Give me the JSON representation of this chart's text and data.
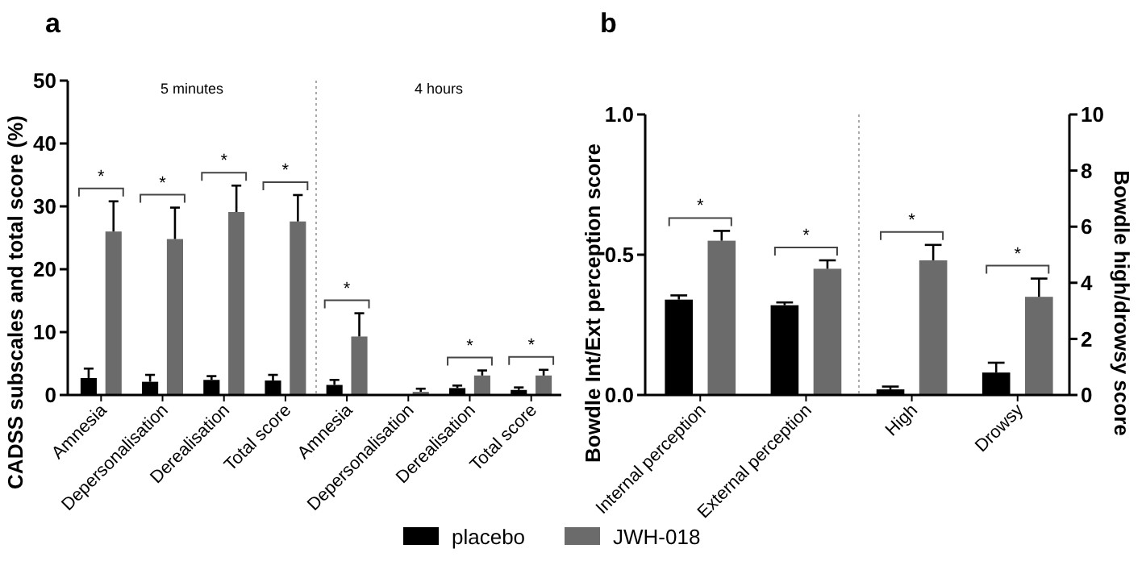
{
  "chart_data": [
    {
      "type": "bar",
      "title": "a",
      "ylabel": "CADSS subscales and total score (%)",
      "categories": [
        "Amnesia",
        "Depersonalisation",
        "Derealisation",
        "Total score",
        "Amnesia",
        "Depersonalisation",
        "Derealisation",
        "Total score"
      ],
      "series": [
        {
          "name": "placebo",
          "color": "#000000",
          "values": [
            2.7,
            2.1,
            2.4,
            2.3,
            1.6,
            0,
            1.1,
            0.8
          ],
          "errors": [
            [
              2.7,
              4.2
            ],
            [
              2.1,
              3.2
            ],
            [
              2.4,
              3.0
            ],
            [
              2.3,
              3.2
            ],
            [
              1.6,
              2.4
            ],
            null,
            [
              1.1,
              1.5
            ],
            [
              0.8,
              1.2
            ]
          ]
        },
        {
          "name": "JWH-018",
          "color": "#6b6b6b",
          "values": [
            26,
            24.8,
            29.1,
            27.6,
            9.3,
            0.5,
            3.1,
            3.1
          ],
          "errors": [
            [
              26,
              30.8
            ],
            [
              24.8,
              29.8
            ],
            [
              29.1,
              33.3
            ],
            [
              27.6,
              31.8
            ],
            [
              9.3,
              13.0
            ],
            [
              0.5,
              1.0
            ],
            [
              3.1,
              3.9
            ],
            [
              3.1,
              4.0
            ]
          ]
        }
      ],
      "ylim": [
        0,
        50
      ],
      "yticks": [
        0,
        10,
        20,
        30,
        40,
        50
      ],
      "grid": false,
      "legend": "bottom",
      "annotations": [
        "5 minutes",
        "4 hours",
        "*",
        "*",
        "*",
        "*",
        "*",
        "*",
        "*"
      ]
    },
    {
      "type": "bar",
      "title": "b",
      "ylabel": "Bowdle Int/Ext perception score",
      "y2label": "Bowdle high/drowsy score",
      "categories": [
        "Internal perception",
        "External perception",
        "High",
        "Drowsy"
      ],
      "series": [
        {
          "color": "#000000",
          "values": [
            0.34,
            0.32,
            null,
            null
          ],
          "errors": [
            [
              0.34,
              0.355
            ],
            [
              0.32,
              0.33
            ],
            null,
            null
          ]
        },
        {
          "color": "#6b6b6b",
          "values": [
            0.55,
            0.45,
            null,
            null
          ],
          "errors": [
            [
              0.55,
              0.585
            ],
            [
              0.45,
              0.48
            ],
            null,
            null
          ]
        },
        {
          "color": "#000000",
          "axis": "y2",
          "values": [
            null,
            null,
            0.2,
            0.8
          ],
          "errors": [
            null,
            null,
            [
              0.2,
              0.3
            ],
            [
              0.8,
              1.15
            ]
          ]
        },
        {
          "color": "#6b6b6b",
          "axis": "y2",
          "values": [
            null,
            null,
            4.8,
            3.5
          ],
          "errors": [
            null,
            null,
            [
              4.8,
              5.35
            ],
            [
              3.5,
              4.15
            ]
          ]
        }
      ],
      "ylim": [
        0,
        1
      ],
      "yticks": [
        {
          "value": 0,
          "label": "0.0"
        },
        {
          "value": 0.5,
          "label": "0.5"
        },
        {
          "value": 1,
          "label": "1.0"
        }
      ],
      "y2lim": [
        0,
        10
      ],
      "y2ticks": [
        0,
        2,
        4,
        6,
        8,
        10
      ],
      "grid": false,
      "legend": false,
      "annotations": [
        "*",
        "*",
        "*",
        "*"
      ]
    }
  ]
}
